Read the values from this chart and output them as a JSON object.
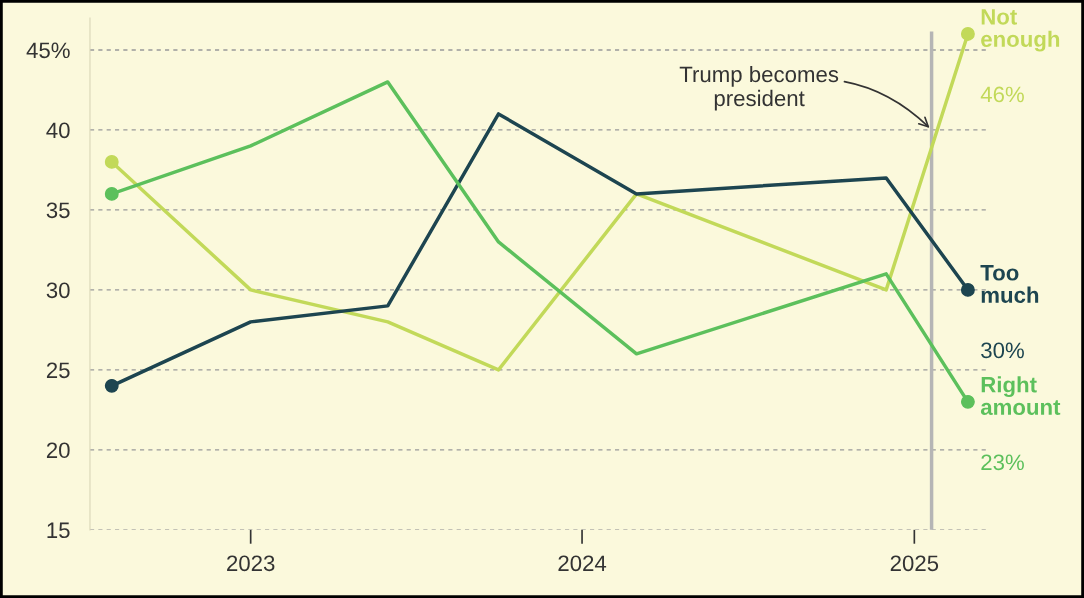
{
  "chart_data": {
    "type": "line",
    "x": [
      "2022-08",
      "2023-01",
      "2023-06",
      "2023-10",
      "2024-03",
      "2024-12",
      "2025-03"
    ],
    "series": [
      {
        "name": "Not enough",
        "color": "#c2d959",
        "values": [
          38,
          30,
          28,
          25,
          36,
          30,
          46
        ],
        "value_labels": [
          null,
          null,
          null,
          null,
          null,
          null,
          "46%"
        ]
      },
      {
        "name": "Too much",
        "color": "#1d4550",
        "values": [
          24,
          28,
          29,
          41,
          36,
          37,
          30
        ],
        "value_labels": [
          null,
          null,
          null,
          null,
          null,
          null,
          "30%"
        ]
      },
      {
        "name": "Right amount",
        "color": "#5cc05c",
        "values": [
          36,
          39,
          43,
          33,
          26,
          31,
          23
        ],
        "value_labels": [
          null,
          null,
          null,
          null,
          null,
          null,
          "23%"
        ]
      }
    ],
    "xlim": [
      "2022-07-08",
      "2025-03-25"
    ],
    "xticks": [
      {
        "value": "2023-01-01",
        "label": "2023"
      },
      {
        "value": "2024-01-01",
        "label": "2024"
      },
      {
        "value": "2025-01-01",
        "label": "2025"
      }
    ],
    "ylim": [
      15,
      47
    ],
    "yticks": [
      15,
      20,
      25,
      30,
      35,
      40,
      {
        "value": 45,
        "label": "45%"
      }
    ],
    "grid": "y",
    "line_style": "solid",
    "legend": false,
    "ref_lines": [
      {
        "axis": "x",
        "value": "2025-01-20",
        "label": "Trump becomes president",
        "color": "#b5b5b5"
      }
    ]
  }
}
